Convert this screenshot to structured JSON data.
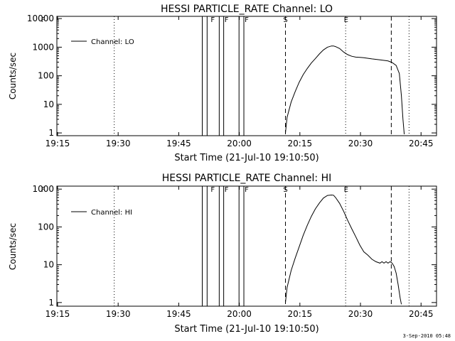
{
  "chart_data": [
    {
      "type": "line",
      "title": "HESSI PARTICLE_RATE Channel: LO",
      "xlabel": "Start Time (21-Jul-10 19:10:50)",
      "ylabel": "Counts/sec",
      "yscale": "log",
      "xlim": [
        4.0,
        98.0
      ],
      "ylim": [
        0.8,
        12000
      ],
      "grid": false,
      "legend_position": "top-left",
      "x_tick_labels": [
        "19:15",
        "19:30",
        "19:45",
        "20:00",
        "20:15",
        "20:30",
        "20:45"
      ],
      "x_tick_minutes": [
        4.17,
        19.17,
        34.17,
        49.17,
        64.17,
        79.17,
        94.17
      ],
      "y_ticks": [
        1,
        10,
        100,
        1000,
        10000
      ],
      "y_tick_labels": [
        "1",
        "10",
        "100",
        "1000",
        "10000"
      ],
      "series": [
        {
          "name": "Channel: LO",
          "x": [
            60.6,
            61.0,
            62.0,
            63.0,
            64.0,
            65.0,
            66.0,
            67.0,
            68.0,
            69.0,
            70.0,
            71.0,
            72.0,
            72.5,
            73.0,
            74.0,
            75.0,
            76.0,
            77.0,
            78.0,
            79.0,
            80.0,
            82.0,
            84.0,
            86.0,
            87.0,
            88.0,
            88.8,
            89.3,
            89.7,
            90.0
          ],
          "y": [
            1.0,
            3.5,
            12,
            28,
            60,
            110,
            180,
            280,
            400,
            580,
            800,
            1000,
            1100,
            1100,
            1050,
            900,
            680,
            550,
            480,
            450,
            440,
            430,
            390,
            360,
            330,
            290,
            230,
            120,
            20,
            3,
            0.9
          ]
        }
      ],
      "markers": [
        {
          "label": "F",
          "minute": 0.6
        },
        {
          "label": "F",
          "minute": 42.6
        },
        {
          "label": "F",
          "minute": 46.0
        },
        {
          "label": "F",
          "minute": 51.0
        },
        {
          "label": "S",
          "minute": 60.6
        },
        {
          "label": "E",
          "minute": 75.6
        }
      ],
      "flag_bars": [
        [
          40.0,
          41.2
        ],
        [
          44.2,
          45.3
        ],
        [
          49.1,
          50.3
        ]
      ],
      "dashed_lines": [
        60.6,
        86.8
      ],
      "dotted_lines": [
        18.2,
        75.5,
        91.2
      ]
    },
    {
      "type": "line",
      "title": "HESSI PARTICLE_RATE Channel: HI",
      "xlabel": "Start Time (21-Jul-10 19:10:50)",
      "ylabel": "Counts/sec",
      "yscale": "log",
      "xlim": [
        4.0,
        98.0
      ],
      "ylim": [
        0.8,
        1200
      ],
      "grid": false,
      "legend_position": "top-left",
      "x_tick_labels": [
        "19:15",
        "19:30",
        "19:45",
        "20:00",
        "20:15",
        "20:30",
        "20:45"
      ],
      "x_tick_minutes": [
        4.17,
        19.17,
        34.17,
        49.17,
        64.17,
        79.17,
        94.17
      ],
      "y_ticks": [
        1,
        10,
        100,
        1000
      ],
      "y_tick_labels": [
        "1",
        "10",
        "100",
        "1000"
      ],
      "series": [
        {
          "name": "Channel: HI",
          "x": [
            60.6,
            61.0,
            62.0,
            63.0,
            64.0,
            65.0,
            66.0,
            67.0,
            68.0,
            69.0,
            70.0,
            71.0,
            72.0,
            72.5,
            73.0,
            74.0,
            75.0,
            76.0,
            77.0,
            78.0,
            79.0,
            80.0,
            81.0,
            82.0,
            83.0,
            84.0,
            84.5,
            85.0,
            85.5,
            86.0,
            86.5,
            87.0,
            87.5,
            88.0,
            88.5,
            89.0,
            89.3
          ],
          "y": [
            1.0,
            2.5,
            7,
            15,
            30,
            60,
            110,
            190,
            300,
            430,
            580,
            680,
            700,
            690,
            600,
            420,
            260,
            150,
            90,
            55,
            33,
            22,
            18,
            14,
            12,
            11,
            12,
            11,
            12,
            11,
            12,
            11,
            9,
            6,
            3,
            1.3,
            0.9
          ]
        }
      ],
      "markers": [
        {
          "label": "F",
          "minute": 0.6
        },
        {
          "label": "F",
          "minute": 42.6
        },
        {
          "label": "F",
          "minute": 46.0
        },
        {
          "label": "F",
          "minute": 51.0
        },
        {
          "label": "S",
          "minute": 60.6
        },
        {
          "label": "E",
          "minute": 75.6
        }
      ],
      "flag_bars": [
        [
          40.0,
          41.2
        ],
        [
          44.2,
          45.3
        ],
        [
          49.1,
          50.3
        ]
      ],
      "dashed_lines": [
        60.6,
        86.8
      ],
      "dotted_lines": [
        18.2,
        75.5,
        91.2
      ]
    }
  ],
  "footer": {
    "timestamp": "3-Sep-2010 05:48"
  }
}
